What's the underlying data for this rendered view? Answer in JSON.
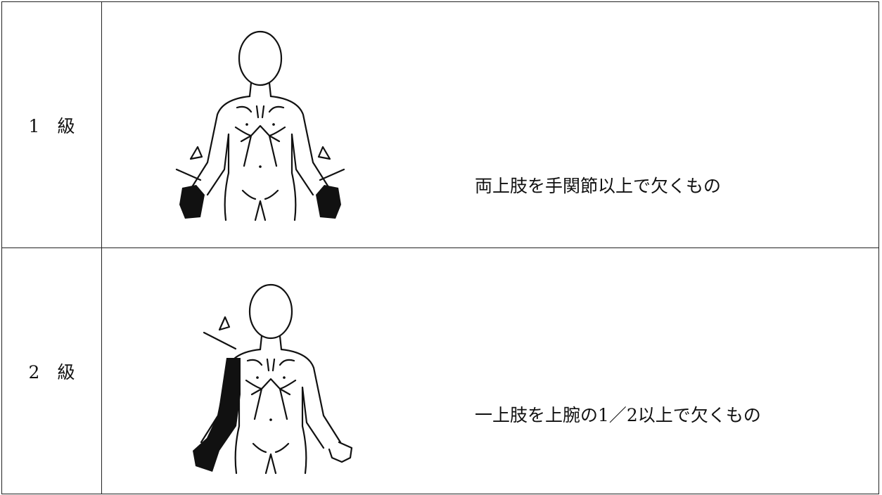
{
  "table": {
    "rows": [
      [
        "1　級",
        "両上肢を手関節以上で欠くもの"
      ],
      [
        "2　級",
        "一上肢を上腕の1／2以上で欠くもの"
      ]
    ]
  }
}
